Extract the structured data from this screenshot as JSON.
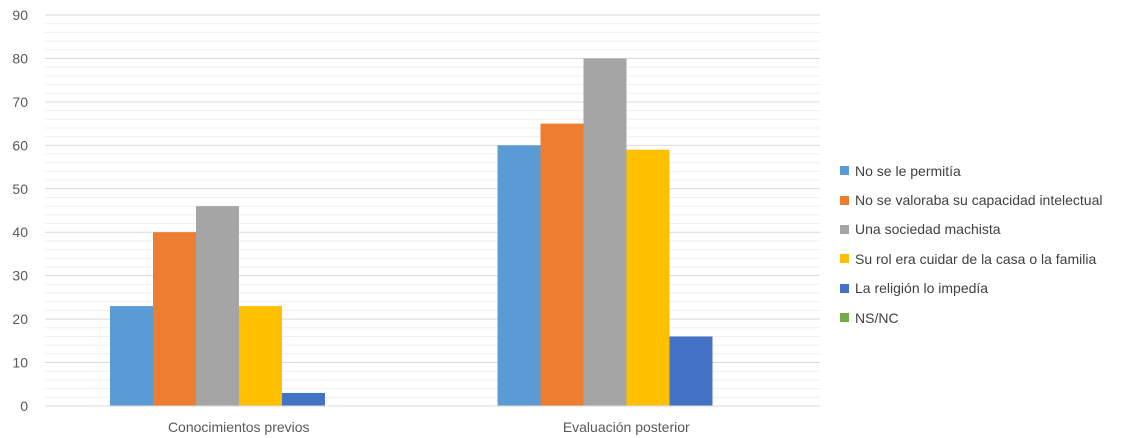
{
  "chart_data": {
    "type": "bar",
    "categories": [
      "Conocimientos previos",
      "Evaluación posterior"
    ],
    "series": [
      {
        "name": "No se le permitía",
        "values": [
          23,
          60
        ],
        "color": "#5B9BD5"
      },
      {
        "name": "No se valoraba su capacidad intelectual",
        "values": [
          40,
          65
        ],
        "color": "#ED7D31"
      },
      {
        "name": "Una sociedad machista",
        "values": [
          46,
          80
        ],
        "color": "#A5A5A5"
      },
      {
        "name": "Su rol era cuidar de la casa o la familia",
        "values": [
          23,
          59
        ],
        "color": "#FFC000"
      },
      {
        "name": "La religión lo impedía",
        "values": [
          3,
          16
        ],
        "color": "#4472C4"
      },
      {
        "name": "NS/NC",
        "values": [
          0,
          0
        ],
        "color": "#70AD47"
      }
    ],
    "ylim": [
      0,
      90
    ],
    "yticks": [
      0,
      10,
      20,
      30,
      40,
      50,
      60,
      70,
      80,
      90
    ],
    "grid": true,
    "legend": "right"
  }
}
